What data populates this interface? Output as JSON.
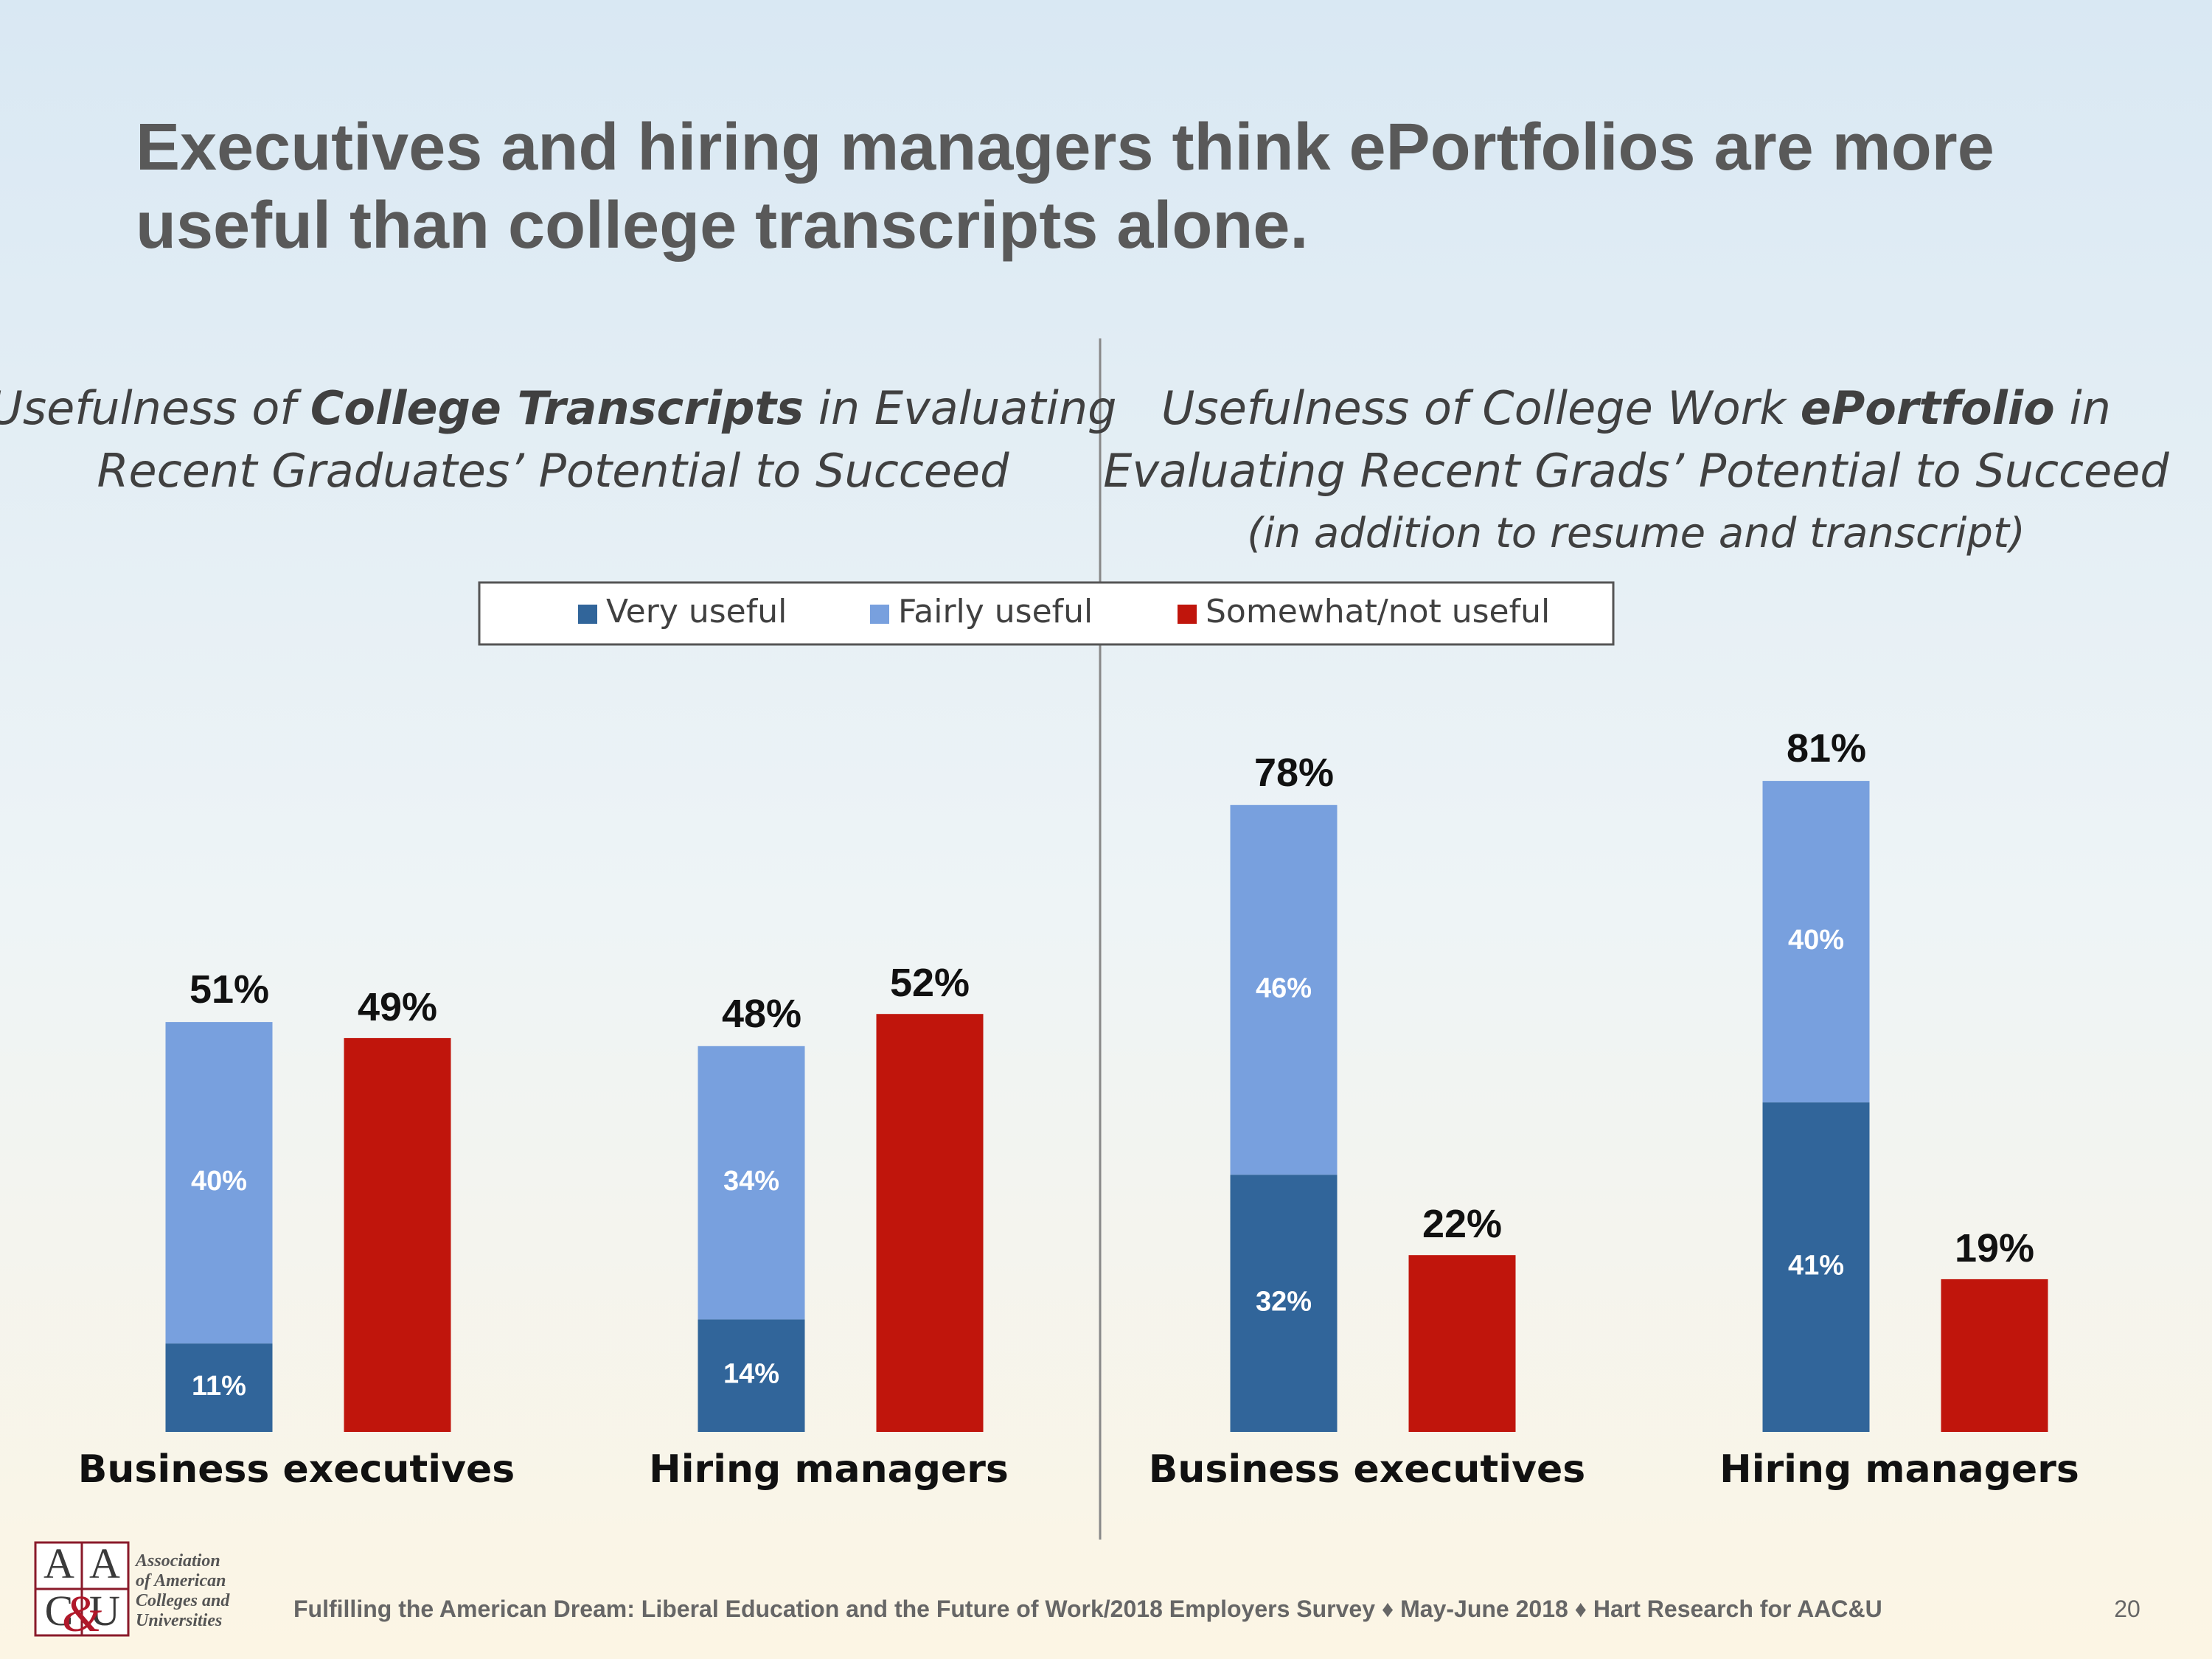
{
  "title": [
    "Executives and hiring managers think ePortfolios are more",
    "useful than college transcripts alone."
  ],
  "chart_data": [
    {
      "type": "bar",
      "subtitle": [
        [
          "Usefulness of ",
          "College Transcripts",
          " in Evaluating"
        ],
        [
          "Recent Graduates’ Potential to Succeed"
        ]
      ],
      "categories": [
        "Business executives",
        "Hiring managers"
      ],
      "series": [
        {
          "name": "Very useful",
          "color": "#31659a",
          "values": [
            11,
            14
          ],
          "value_labels": [
            "11%",
            "14%"
          ]
        },
        {
          "name": "Fairly useful",
          "color": "#78a0de",
          "values": [
            40,
            34
          ],
          "value_labels": [
            "40%",
            "34%"
          ]
        },
        {
          "name": "Somewhat/not useful",
          "color": "#c0150c",
          "values": [
            49,
            52
          ],
          "value_labels": [
            "49%",
            "52%"
          ]
        }
      ],
      "totals": [
        51,
        48
      ],
      "total_labels": [
        "51%",
        "48%"
      ]
    },
    {
      "type": "bar",
      "subtitle": [
        [
          "Usefulness of College Work ",
          "ePortfolio",
          "  in"
        ],
        [
          "Evaluating Recent Grads’ Potential to Succeed"
        ],
        [
          "(in addition to resume and transcript)"
        ]
      ],
      "categories": [
        "Business executives",
        "Hiring managers"
      ],
      "series": [
        {
          "color": "#31659a",
          "values": [
            32,
            41
          ],
          "value_labels": [
            "32%",
            "41%"
          ]
        },
        {
          "color": "#78a0de",
          "values": [
            46,
            40
          ],
          "value_labels": [
            "46%",
            "40%"
          ]
        },
        {
          "color": "#c0150c",
          "values": [
            22,
            19
          ],
          "value_labels": [
            "22%",
            "19%"
          ]
        }
      ],
      "totals": [
        78,
        81
      ],
      "total_labels": [
        "78%",
        "81%"
      ]
    }
  ],
  "footer": "Fulfilling the American Dream: Liberal Education and the Future of Work/2018 Employers Survey ♦ May-June 2018 ♦ Hart Research for AAC&U",
  "page_number": "20",
  "logo": {
    "letters": [
      "A",
      "A",
      "C",
      "U"
    ],
    "ampersand": "&",
    "name": [
      "Association",
      "of American",
      "Colleges and",
      "Universities"
    ]
  }
}
